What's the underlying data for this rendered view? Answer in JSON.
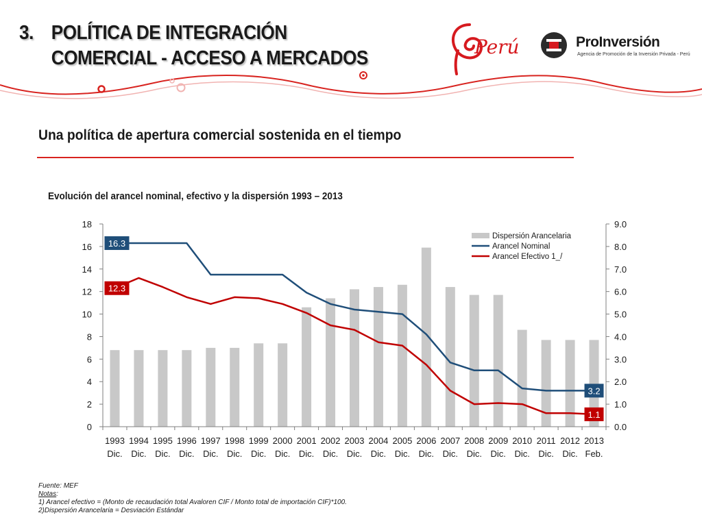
{
  "header": {
    "number": "3.",
    "title_line1": "POLÍTICA DE INTEGRACIÓN",
    "title_line2": "COMERCIAL -  ACCESO A MERCADOS",
    "logo_peru": "Perú",
    "logo_proinversion": "ProInversión",
    "logo_proinversion_tagline": "Agencia de Promoción de la Inversión Privada - Perú"
  },
  "subtitle": "Una política de apertura comercial sostenida en el tiempo",
  "colors": {
    "accent_red": "#d8231f",
    "nominal": "#1f4e79",
    "efectivo": "#c00000",
    "bars": "#c8c8c8"
  },
  "chart_data": {
    "type": "bar",
    "title": "Evolución del arancel nominal, efectivo y la dispersión 1993 – 2013",
    "categories": [
      [
        "1993",
        "Dic."
      ],
      [
        "1994",
        "Dic."
      ],
      [
        "1995",
        "Dic."
      ],
      [
        "1996",
        "Dic."
      ],
      [
        "1997",
        "Dic."
      ],
      [
        "1998",
        "Dic."
      ],
      [
        "1999",
        "Dic."
      ],
      [
        "2000",
        "Dic."
      ],
      [
        "2001",
        "Dic."
      ],
      [
        "2002",
        "Dic."
      ],
      [
        "2003",
        "Dic."
      ],
      [
        "2004",
        "Dic."
      ],
      [
        "2005",
        "Dic."
      ],
      [
        "2006",
        "Dic."
      ],
      [
        "2007",
        "Dic."
      ],
      [
        "2008",
        "Dic."
      ],
      [
        "2009",
        "Dic."
      ],
      [
        "2010",
        "Dic."
      ],
      [
        "2011",
        "Dic."
      ],
      [
        "2012",
        "Dic."
      ],
      [
        "2013",
        "Feb."
      ]
    ],
    "left_axis": {
      "min": 0,
      "max": 18,
      "ticks": [
        "0",
        "2",
        "4",
        "6",
        "8",
        "10",
        "12",
        "14",
        "16",
        "18"
      ]
    },
    "right_axis": {
      "min": 0,
      "max": 9,
      "ticks": [
        "0.0",
        "1.0",
        "2.0",
        "3.0",
        "4.0",
        "5.0",
        "6.0",
        "7.0",
        "8.0",
        "9.0"
      ]
    },
    "series": [
      {
        "name": "Dispersión Arancelaria",
        "kind": "bar",
        "axis": "right",
        "color": "#c8c8c8",
        "values": [
          3.4,
          3.4,
          3.4,
          3.4,
          3.5,
          3.5,
          3.7,
          3.7,
          5.3,
          5.7,
          6.1,
          6.2,
          6.3,
          7.95,
          6.2,
          5.85,
          5.85,
          4.3,
          3.85,
          3.85,
          3.85
        ]
      },
      {
        "name": "Arancel Nominal",
        "kind": "line",
        "axis": "left",
        "color": "#1f4e79",
        "values": [
          16.3,
          16.3,
          16.3,
          16.3,
          13.5,
          13.5,
          13.5,
          13.5,
          11.9,
          10.9,
          10.4,
          10.2,
          10.0,
          8.2,
          5.7,
          5.0,
          5.0,
          3.4,
          3.2,
          3.2,
          3.2
        ]
      },
      {
        "name": "Arancel Efectivo 1_/",
        "kind": "line",
        "axis": "left",
        "color": "#c00000",
        "values": [
          12.3,
          13.2,
          12.4,
          11.5,
          10.9,
          11.5,
          11.4,
          10.9,
          10.1,
          9.0,
          8.6,
          7.5,
          7.2,
          5.5,
          3.2,
          2.0,
          2.1,
          2.0,
          1.2,
          1.2,
          1.1
        ]
      }
    ],
    "annotations": [
      {
        "text": "16.3",
        "series": "Arancel Nominal",
        "index": 0,
        "color": "#1f4e79"
      },
      {
        "text": "12.3",
        "series": "Arancel Efectivo 1_/",
        "index": 0,
        "color": "#c00000"
      },
      {
        "text": "3.2",
        "series": "Arancel Nominal",
        "index": 20,
        "color": "#1f4e79"
      },
      {
        "text": "1.1",
        "series": "Arancel Efectivo 1_/",
        "index": 20,
        "color": "#c00000"
      }
    ],
    "legend_position": "top-right",
    "grid": false
  },
  "notes": {
    "source": "Fuente: MEF",
    "notes_label": "Notas",
    "notes_colon": ":",
    "note1": "1) Arancel efectivo = (Monto de recaudación total Avaloren CIF / Monto total de importación CIF)*100.",
    "note2": "2)Dispersión  Arancelaria = Desviación Estándar"
  }
}
